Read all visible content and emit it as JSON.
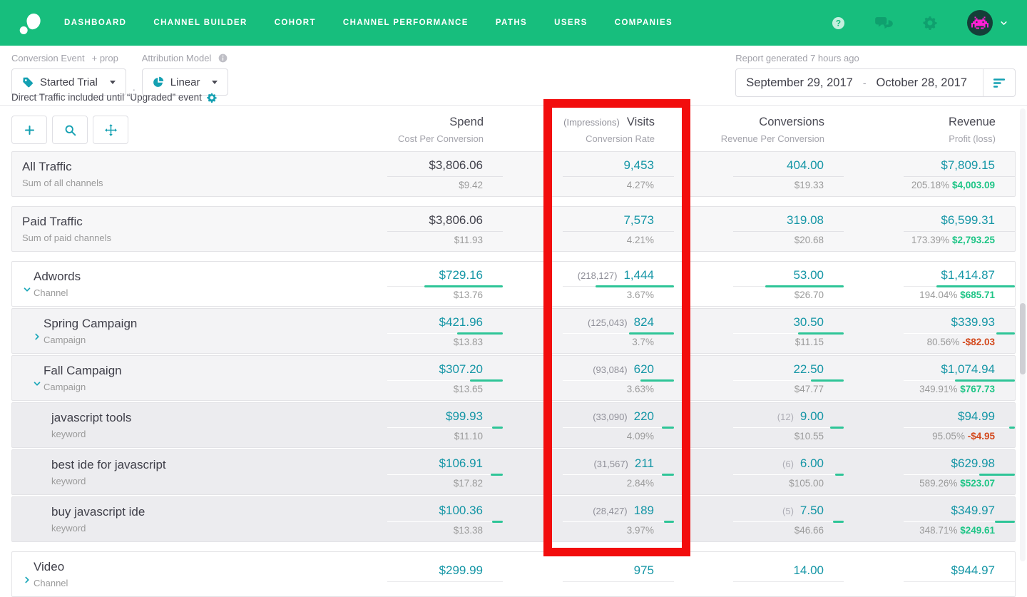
{
  "nav": {
    "items": [
      "DASHBOARD",
      "CHANNEL BUILDER",
      "COHORT",
      "CHANNEL PERFORMANCE",
      "PATHS",
      "USERS",
      "COMPANIES"
    ]
  },
  "filters": {
    "conversion_event": {
      "label": "Conversion Event",
      "prop_label": "+ prop",
      "value": "Started Trial"
    },
    "separator": ":",
    "attribution_model": {
      "label": "Attribution Model",
      "value": "Linear"
    },
    "note": "Direct Traffic included until “Upgraded” event"
  },
  "report": {
    "generated": "Report generated 7 hours ago",
    "date_start": "September 29, 2017",
    "date_separator": "-",
    "date_end": "October 28, 2017"
  },
  "table": {
    "headers": {
      "spend": {
        "main": "Spend",
        "sub": "Cost Per Conversion"
      },
      "visits": {
        "pre": "(Impressions)",
        "main": "Visits",
        "sub": "Conversion Rate"
      },
      "conversions": {
        "main": "Conversions",
        "sub": "Revenue Per Conversion"
      },
      "revenue": {
        "main": "Revenue",
        "sub": "Profit (loss)"
      }
    },
    "rows": [
      {
        "name": "All Traffic",
        "type_label": "Sum of all channels",
        "level": 0,
        "expand": null,
        "style": "summary",
        "group_end": true,
        "spend": {
          "value": "$3,806.06",
          "per": "$9.42",
          "emph": false,
          "bar": 0
        },
        "visits": {
          "impressions": null,
          "value": "9,453",
          "rate": "4.27%",
          "bar": 0
        },
        "conversions": {
          "count": null,
          "value": "404.00",
          "per": "$19.33",
          "bar": 0
        },
        "revenue": {
          "value": "$7,809.15",
          "pct": "205.18%",
          "profit": "$4,003.09",
          "profit_sign": "positive",
          "bar": 0
        }
      },
      {
        "name": "Paid Traffic",
        "type_label": "Sum of paid channels",
        "level": 0,
        "expand": null,
        "style": "summary",
        "group_end": true,
        "spend": {
          "value": "$3,806.06",
          "per": "$11.93",
          "emph": false,
          "bar": 0
        },
        "visits": {
          "impressions": null,
          "value": "7,573",
          "rate": "4.21%",
          "bar": 0
        },
        "conversions": {
          "count": null,
          "value": "319.08",
          "per": "$20.68",
          "bar": 0
        },
        "revenue": {
          "value": "$6,599.31",
          "pct": "173.39%",
          "profit": "$2,793.25",
          "profit_sign": "positive",
          "bar": 0
        }
      },
      {
        "name": "Adwords",
        "type_label": "Channel",
        "level": 0,
        "expand": "expanded",
        "style": "channel",
        "group_end": false,
        "spend": {
          "value": "$729.16",
          "per": "$13.76",
          "emph": true,
          "bar": 1
        },
        "visits": {
          "impressions": "(218,127)",
          "value": "1,444",
          "rate": "3.67%",
          "bar": 1
        },
        "conversions": {
          "count": null,
          "value": "53.00",
          "per": "$26.70",
          "bar": 1
        },
        "revenue": {
          "value": "$1,414.87",
          "pct": "194.04%",
          "profit": "$685.71",
          "profit_sign": "positive",
          "bar": 1
        }
      },
      {
        "name": "Spring Campaign",
        "type_label": "Campaign",
        "level": 1,
        "expand": "collapsed",
        "style": "campaign",
        "group_end": false,
        "spend": {
          "value": "$421.96",
          "per": "$13.83",
          "emph": true,
          "bar": 0.58
        },
        "visits": {
          "impressions": "(125,043)",
          "value": "824",
          "rate": "3.7%",
          "bar": 0.57
        },
        "conversions": {
          "count": null,
          "value": "30.50",
          "per": "$11.15",
          "bar": 0.58
        },
        "revenue": {
          "value": "$339.93",
          "pct": "80.56%",
          "profit": "-$82.03",
          "profit_sign": "negative",
          "bar": 0.24
        }
      },
      {
        "name": "Fall Campaign",
        "type_label": "Campaign",
        "level": 1,
        "expand": "expanded",
        "style": "campaign",
        "group_end": false,
        "spend": {
          "value": "$307.20",
          "per": "$13.65",
          "emph": true,
          "bar": 0.42
        },
        "visits": {
          "impressions": "(93,084)",
          "value": "620",
          "rate": "3.63%",
          "bar": 0.43
        },
        "conversions": {
          "count": null,
          "value": "22.50",
          "per": "$47.77",
          "bar": 0.42
        },
        "revenue": {
          "value": "$1,074.94",
          "pct": "349.91%",
          "profit": "$767.73",
          "profit_sign": "positive",
          "bar": 0.76
        }
      },
      {
        "name": "javascript tools",
        "type_label": "keyword",
        "level": 2,
        "expand": null,
        "style": "keyword",
        "group_end": false,
        "spend": {
          "value": "$99.93",
          "per": "$11.10",
          "emph": true,
          "bar": 0.14
        },
        "visits": {
          "impressions": "(33,090)",
          "value": "220",
          "rate": "4.09%",
          "bar": 0.15
        },
        "conversions": {
          "count": "(12)",
          "value": "9.00",
          "per": "$10.55",
          "bar": 0.17
        },
        "revenue": {
          "value": "$94.99",
          "pct": "95.05%",
          "profit": "-$4.95",
          "profit_sign": "negative",
          "bar": 0.07
        }
      },
      {
        "name": "best ide for javascript",
        "type_label": "keyword",
        "level": 2,
        "expand": null,
        "style": "keyword",
        "group_end": false,
        "spend": {
          "value": "$106.91",
          "per": "$17.82",
          "emph": true,
          "bar": 0.15
        },
        "visits": {
          "impressions": "(31,567)",
          "value": "211",
          "rate": "2.84%",
          "bar": 0.15
        },
        "conversions": {
          "count": "(6)",
          "value": "6.00",
          "per": "$105.00",
          "bar": 0.11
        },
        "revenue": {
          "value": "$629.98",
          "pct": "589.26%",
          "profit": "$523.07",
          "profit_sign": "positive",
          "bar": 0.45
        }
      },
      {
        "name": "buy javascript ide",
        "type_label": "keyword",
        "level": 2,
        "expand": null,
        "style": "keyword",
        "group_end": true,
        "spend": {
          "value": "$100.36",
          "per": "$13.38",
          "emph": true,
          "bar": 0.14
        },
        "visits": {
          "impressions": "(28,427)",
          "value": "189",
          "rate": "3.97%",
          "bar": 0.13
        },
        "conversions": {
          "count": "(5)",
          "value": "7.50",
          "per": "$46.66",
          "bar": 0.14
        },
        "revenue": {
          "value": "$349.97",
          "pct": "348.71%",
          "profit": "$249.61",
          "profit_sign": "positive",
          "bar": 0.25
        }
      },
      {
        "name": "Video",
        "type_label": "Channel",
        "level": 0,
        "expand": "collapsed",
        "style": "channel",
        "group_end": false,
        "spend": {
          "value": "$299.99",
          "per": "",
          "emph": true,
          "bar": 0
        },
        "visits": {
          "impressions": null,
          "value": "975",
          "rate": "",
          "bar": 0
        },
        "conversions": {
          "count": null,
          "value": "14.00",
          "per": "",
          "bar": 0
        },
        "revenue": {
          "value": "$944.97",
          "pct": "",
          "profit": "",
          "profit_sign": "positive",
          "bar": 0
        }
      }
    ]
  },
  "colors": {
    "nav_green": "#17BE7D",
    "accent_teal": "#1596A6",
    "bar_green": "#2EC597",
    "profit_green": "#1EC586",
    "loss_red": "#D3491D",
    "annotation_red": "#F20D0D"
  }
}
